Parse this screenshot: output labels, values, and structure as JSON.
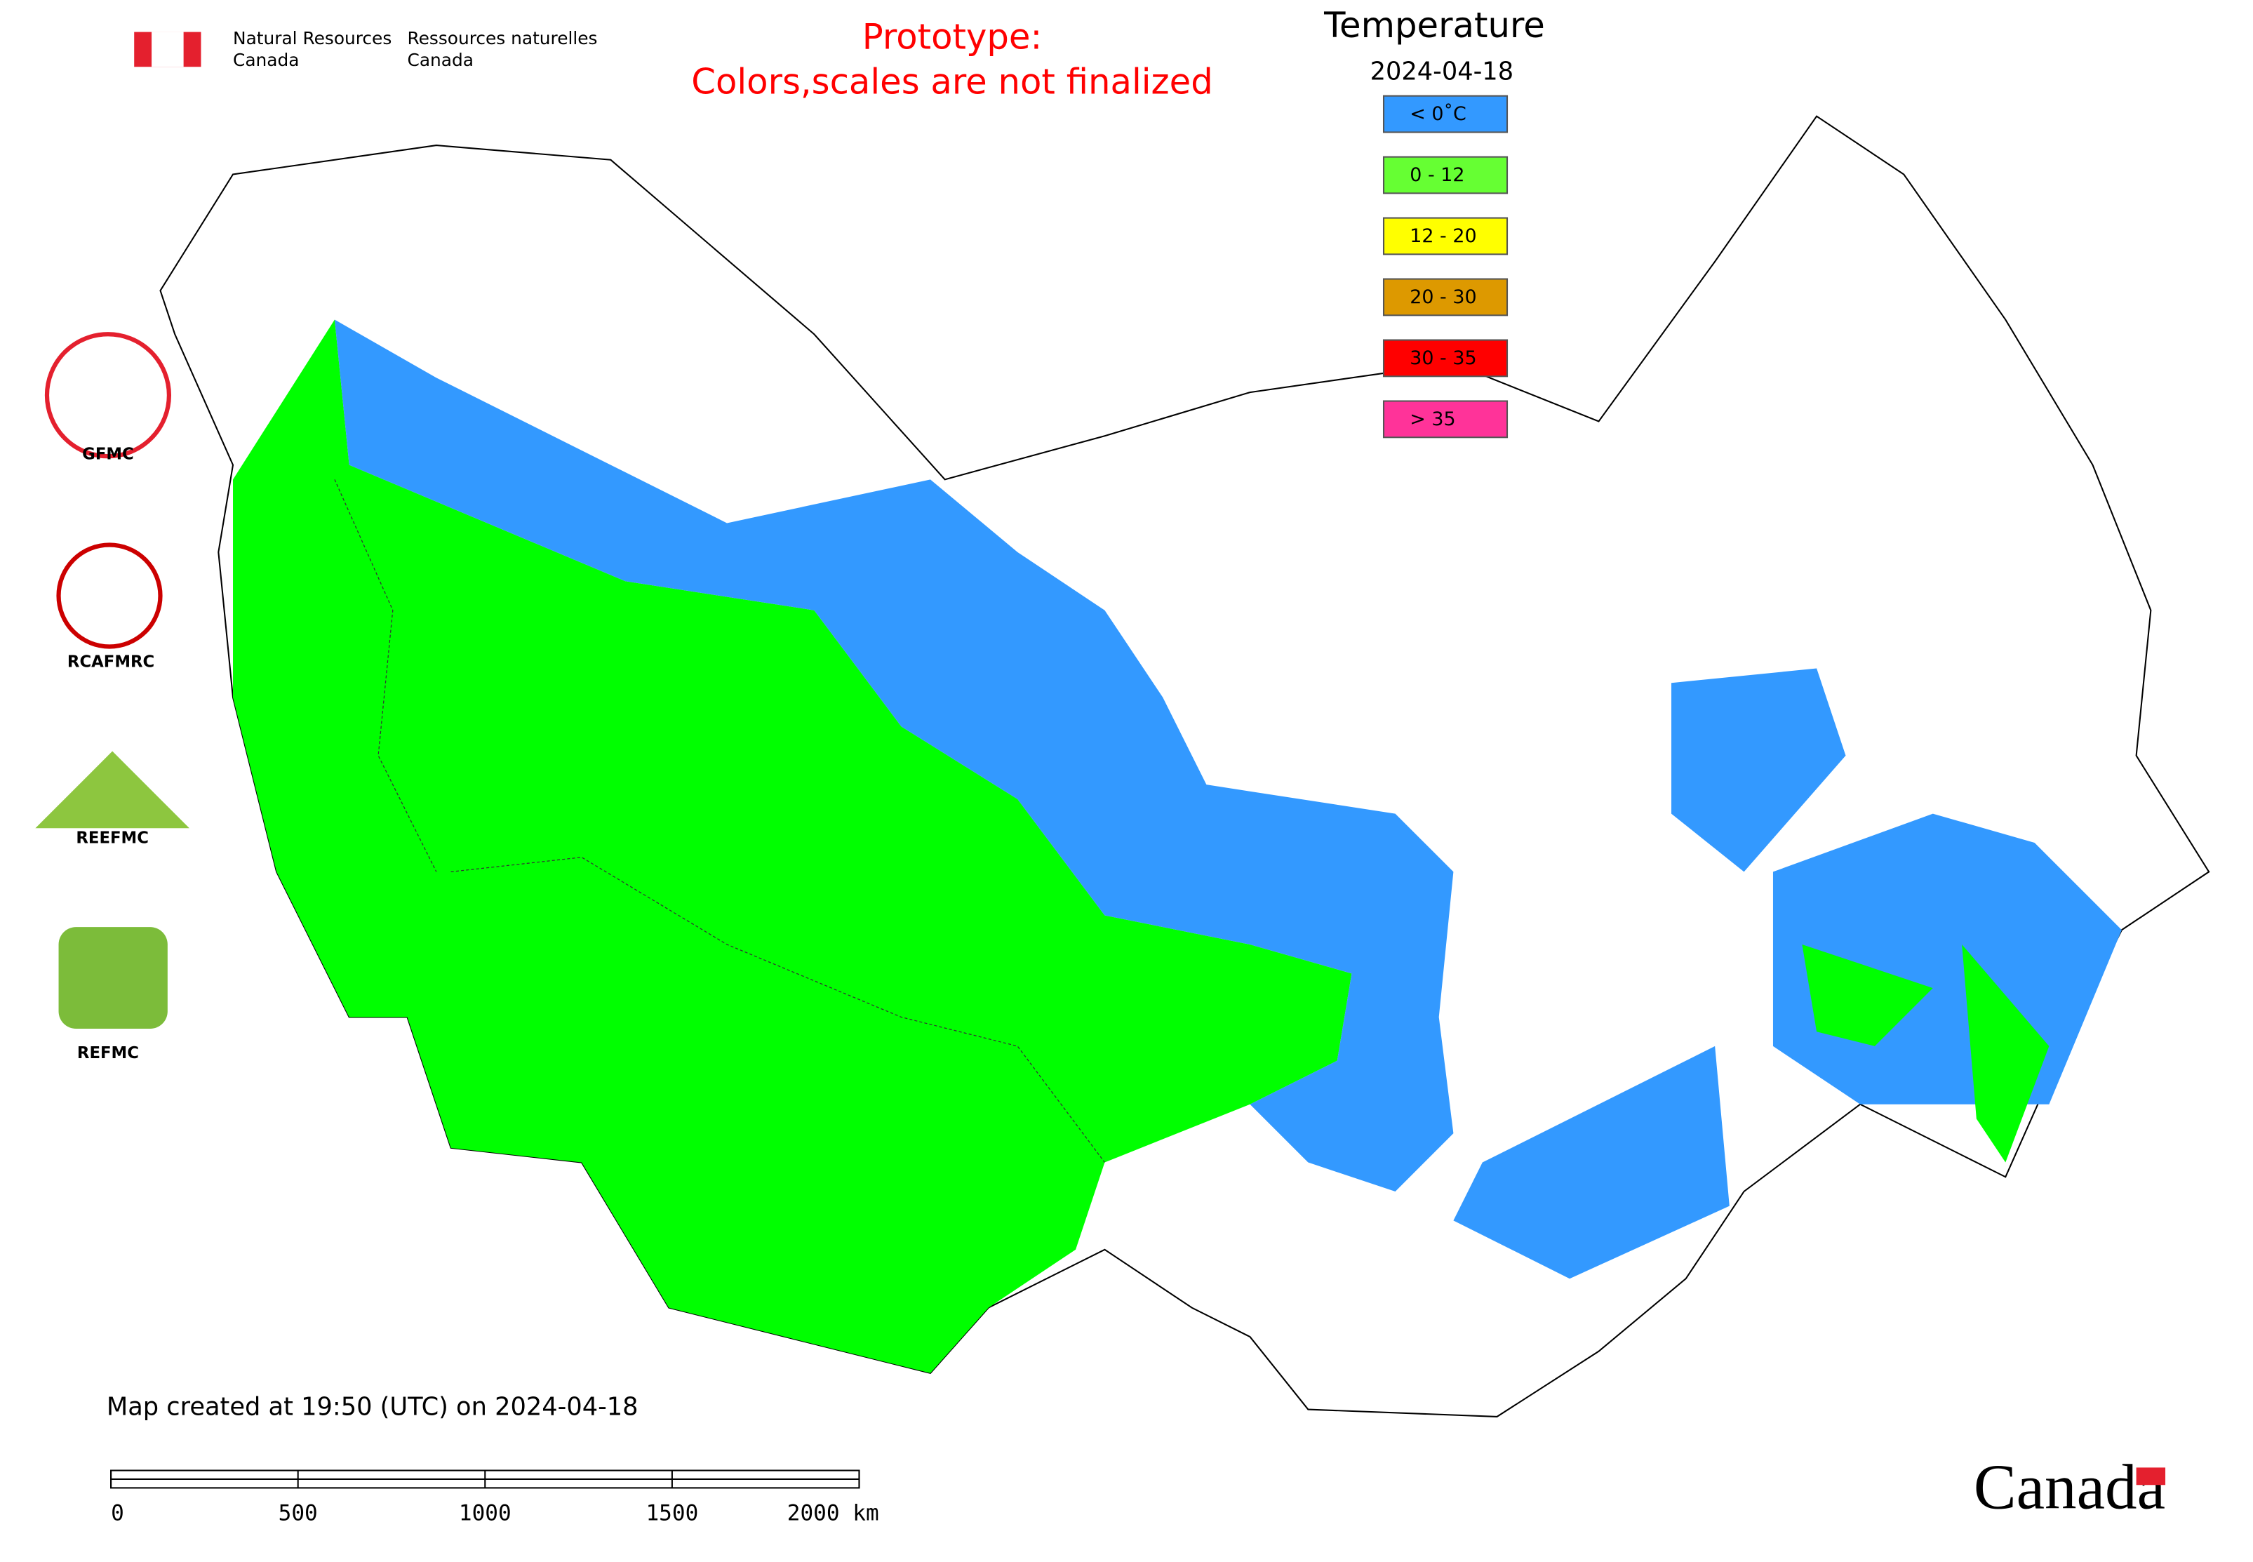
{
  "header": {
    "agency_en": [
      "Natural Resources",
      "Canada"
    ],
    "agency_fr": [
      "Ressources naturelles",
      "Canada"
    ]
  },
  "notice": [
    "Prototype:",
    "Colors,scales are not finalized"
  ],
  "legend": {
    "title": "Temperature",
    "date": "2024-04-18",
    "items": [
      {
        "label": "< 0˚C",
        "color": "#3399ff"
      },
      {
        "label": "0 - 12",
        "color": "#66ff33"
      },
      {
        "label": "12 - 20",
        "color": "#ffff00"
      },
      {
        "label": "20 - 30",
        "color": "#dd9900"
      },
      {
        "label": "30 - 35",
        "color": "#ff0000"
      },
      {
        "label": "> 35",
        "color": "#ff3399"
      }
    ]
  },
  "logos": [
    "GFMC",
    "RCAFMRC",
    "REEFMC",
    "REFMC"
  ],
  "footer": {
    "created": "Map created at 19:50 (UTC) on 2024-04-18",
    "scale_labels": [
      "0",
      "500",
      "1000",
      "1500",
      "2000 km"
    ],
    "wordmark": "Canada"
  }
}
